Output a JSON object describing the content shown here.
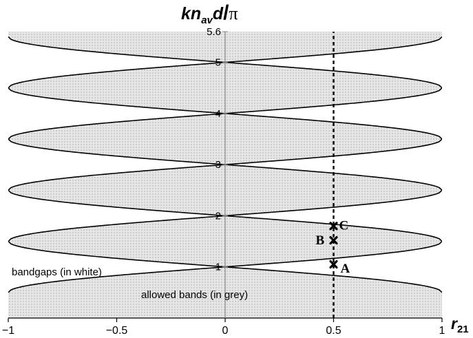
{
  "chart_data": {
    "type": "area",
    "title": "",
    "ylabel_parts": {
      "k": "k",
      "n": "n",
      "sub": "av",
      "d": "d",
      "slash": "/",
      "pi": "π"
    },
    "xlabel_parts": {
      "r": "r",
      "sub": "21"
    },
    "xlim": [
      -1,
      1
    ],
    "ylim": [
      0,
      5.6
    ],
    "x_ticks": [
      {
        "value": -1,
        "label": "−1"
      },
      {
        "value": -0.5,
        "label": "−0.5"
      },
      {
        "value": 0,
        "label": "0"
      },
      {
        "value": 0.5,
        "label": "0.5"
      },
      {
        "value": 1,
        "label": "1"
      }
    ],
    "y_ticks": [
      {
        "value": 1,
        "label": "1"
      },
      {
        "value": 2,
        "label": "2"
      },
      {
        "value": 3,
        "label": "3"
      },
      {
        "value": 4,
        "label": "4"
      },
      {
        "value": 5,
        "label": "5"
      },
      {
        "value": 5.6,
        "label": "5.6"
      }
    ],
    "bandgap_orders": [
      1,
      2,
      3,
      4,
      5
    ],
    "dashed_line_x": 0.5,
    "points": [
      {
        "label": "A",
        "x": 0.5,
        "y": 1.05
      },
      {
        "label": "B",
        "x": 0.5,
        "y": 1.52
      },
      {
        "label": "C",
        "x": 0.5,
        "y": 1.8
      }
    ],
    "annotations": [
      {
        "text": "bandgaps  (in white)",
        "x": -0.99,
        "y": 0.95
      },
      {
        "text": "allowed bands  (in grey)",
        "x": -0.76,
        "y": 0.36
      }
    ],
    "grey_regions": "allowed bands",
    "white_regions": "bandgaps"
  },
  "colors": {
    "band_fill": "#e4e4e4",
    "band_dot": "#c8c8c8",
    "curve": "#000000",
    "axis": "#888888"
  }
}
